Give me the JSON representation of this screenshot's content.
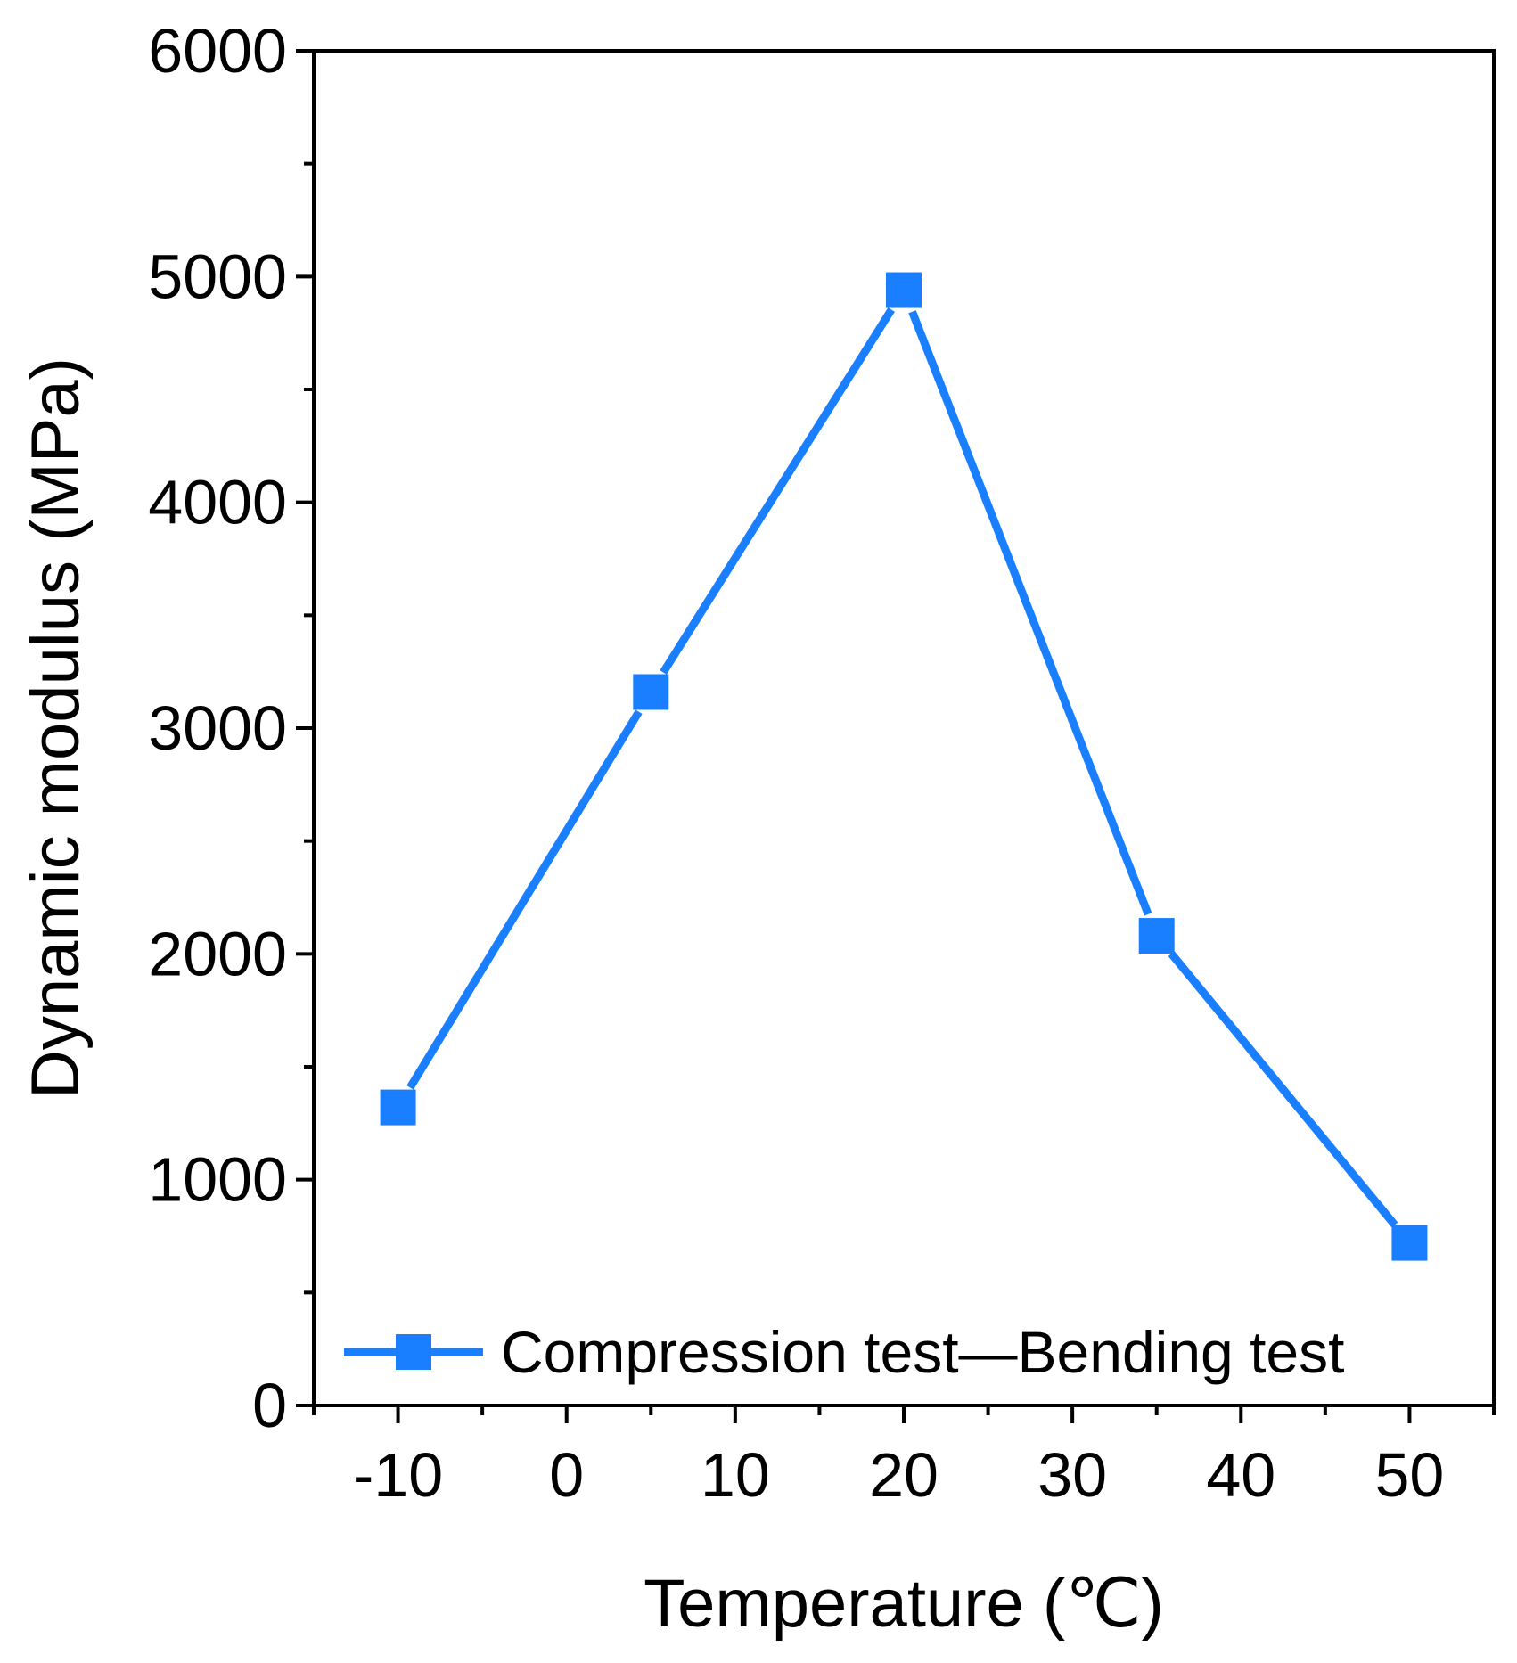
{
  "chart_data": {
    "type": "line",
    "title": "",
    "xlabel": "Temperature (℃)",
    "ylabel": "Dynamic modulus (MPa)",
    "xlim": [
      -15,
      55
    ],
    "ylim": [
      0,
      6000
    ],
    "x_ticks": [
      -10,
      0,
      10,
      20,
      30,
      40,
      50
    ],
    "y_ticks": [
      0,
      1000,
      2000,
      3000,
      4000,
      5000,
      6000
    ],
    "grid": false,
    "legend_position": "bottom-left",
    "series": [
      {
        "name": "Compression test—Bending test",
        "color": "#1a7fff",
        "marker": "square",
        "x": [
          -10,
          5,
          20,
          35,
          50
        ],
        "y": [
          1320,
          3160,
          4940,
          2080,
          720
        ]
      }
    ]
  }
}
